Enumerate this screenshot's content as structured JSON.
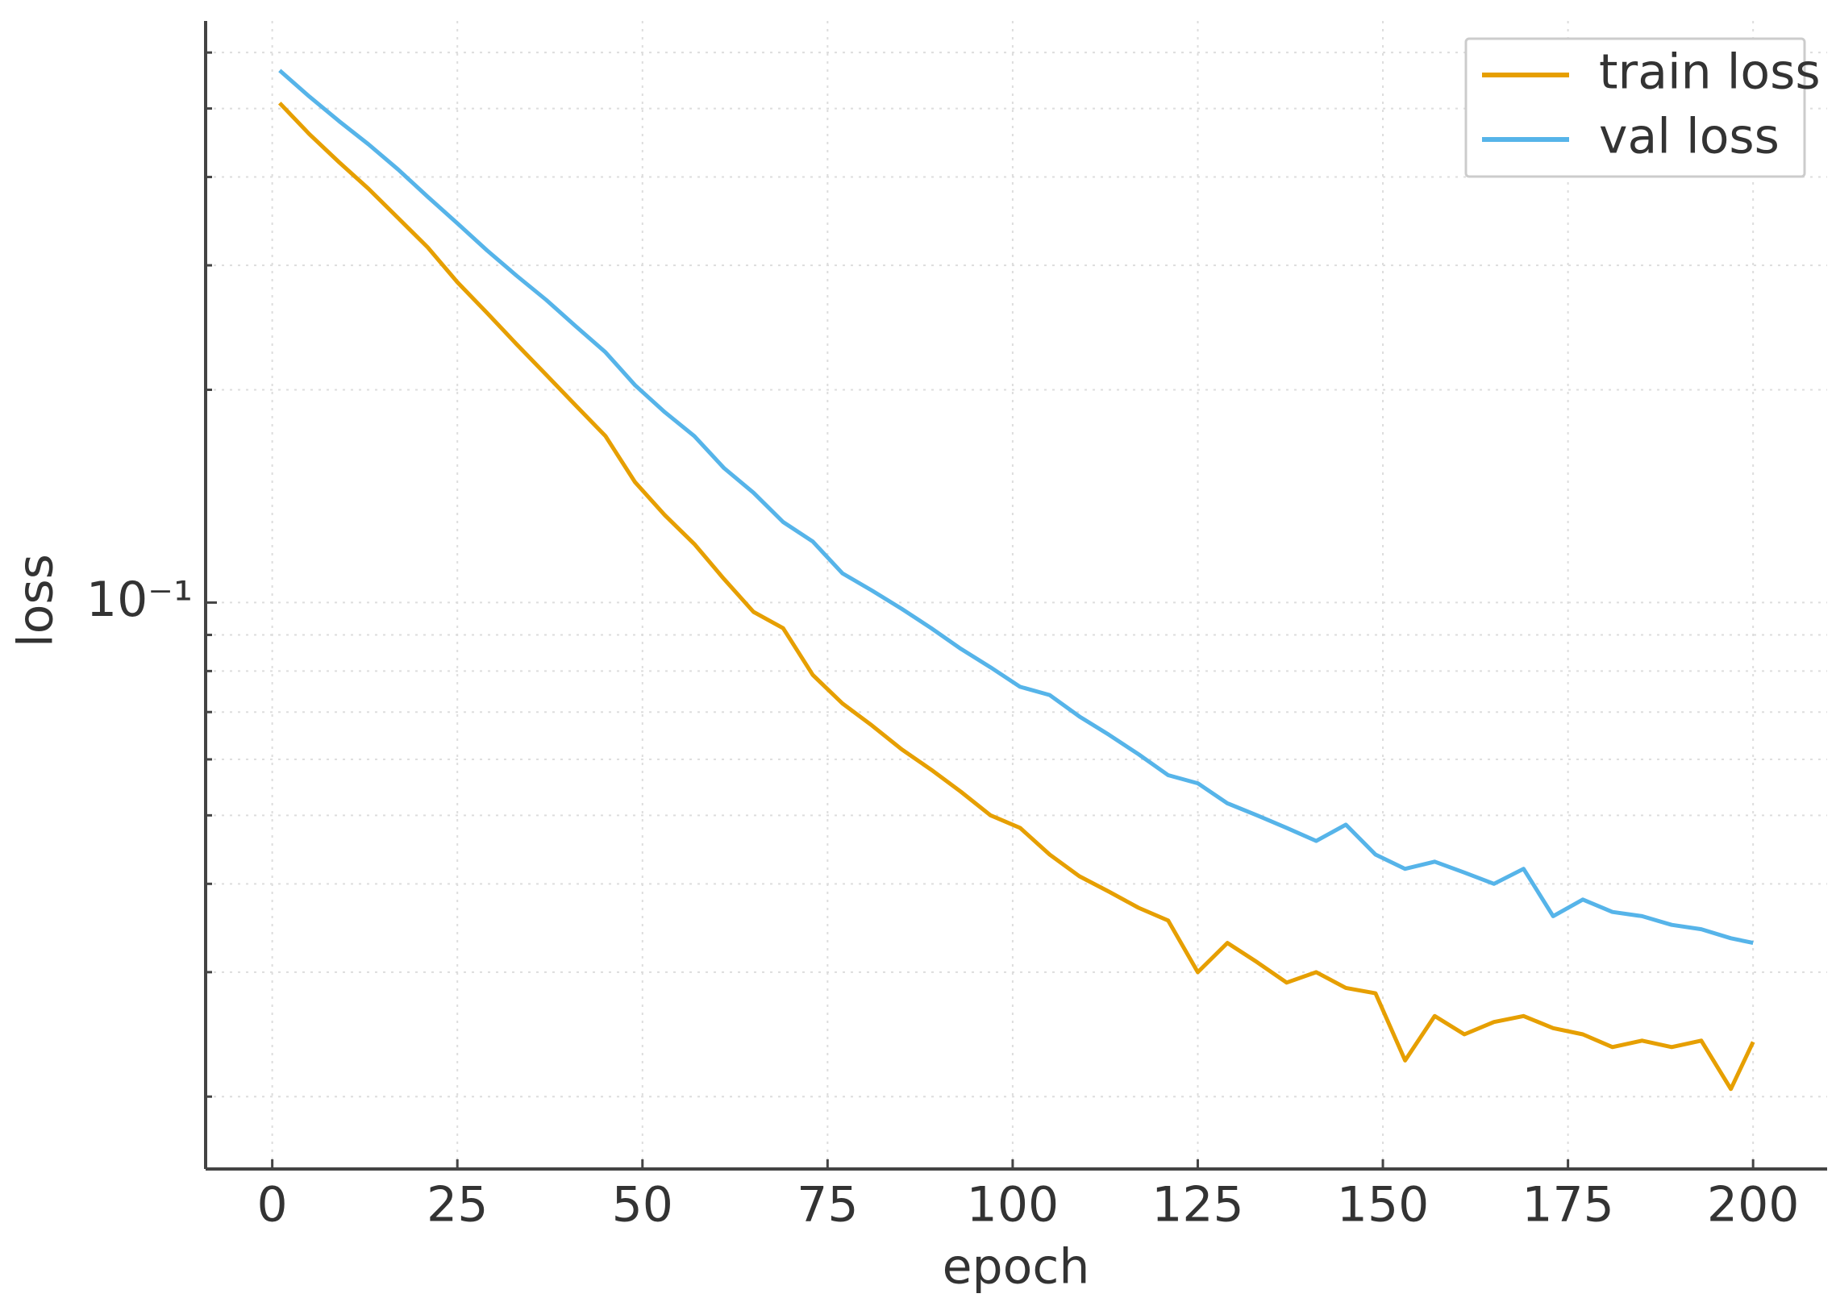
{
  "chart_data": {
    "type": "line",
    "xlabel": "epoch",
    "ylabel": "loss",
    "x": [
      1,
      5,
      9,
      13,
      17,
      21,
      25,
      29,
      33,
      37,
      41,
      45,
      49,
      53,
      57,
      61,
      65,
      69,
      73,
      77,
      81,
      85,
      89,
      93,
      97,
      101,
      105,
      109,
      113,
      117,
      121,
      125,
      129,
      133,
      137,
      141,
      145,
      149,
      153,
      157,
      161,
      165,
      169,
      173,
      177,
      181,
      185,
      189,
      193,
      197,
      200
    ],
    "series": [
      {
        "name": "train loss",
        "color": "#e69f00",
        "values": [
          0.509,
          0.46,
          0.42,
          0.385,
          0.35,
          0.318,
          0.284,
          0.257,
          0.232,
          0.21,
          0.19,
          0.172,
          0.148,
          0.133,
          0.121,
          0.108,
          0.097,
          0.092,
          0.079,
          0.072,
          0.067,
          0.062,
          0.058,
          0.054,
          0.05,
          0.048,
          0.044,
          0.041,
          0.039,
          0.037,
          0.0355,
          0.03,
          0.033,
          0.031,
          0.029,
          0.03,
          0.0285,
          0.028,
          0.0225,
          0.026,
          0.0245,
          0.0255,
          0.026,
          0.025,
          0.0245,
          0.0235,
          0.024,
          0.0235,
          0.024,
          0.0205,
          0.0239
        ]
      },
      {
        "name": "val loss",
        "color": "#56b4e9",
        "values": [
          0.566,
          0.52,
          0.48,
          0.445,
          0.41,
          0.375,
          0.344,
          0.315,
          0.29,
          0.268,
          0.246,
          0.226,
          0.203,
          0.186,
          0.172,
          0.155,
          0.143,
          0.13,
          0.122,
          0.11,
          0.104,
          0.098,
          0.092,
          0.086,
          0.081,
          0.076,
          0.074,
          0.069,
          0.065,
          0.061,
          0.057,
          0.0555,
          0.052,
          0.05,
          0.048,
          0.046,
          0.0485,
          0.044,
          0.042,
          0.043,
          0.0415,
          0.04,
          0.042,
          0.036,
          0.038,
          0.0365,
          0.036,
          0.035,
          0.0345,
          0.0335,
          0.033
        ]
      }
    ],
    "xlim": [
      -9,
      210
    ],
    "xticks": [
      0,
      25,
      50,
      75,
      100,
      125,
      150,
      175,
      200
    ],
    "ylim": [
      0.0158,
      0.665
    ],
    "ylog": true,
    "yticks": [
      {
        "value": 0.1,
        "label": "10⁻¹"
      }
    ],
    "yminorticks": [
      0.02,
      0.03,
      0.04,
      0.05,
      0.06,
      0.07,
      0.08,
      0.09,
      0.2,
      0.3,
      0.4,
      0.5,
      0.6
    ],
    "grid": true,
    "legend": "upper right"
  }
}
